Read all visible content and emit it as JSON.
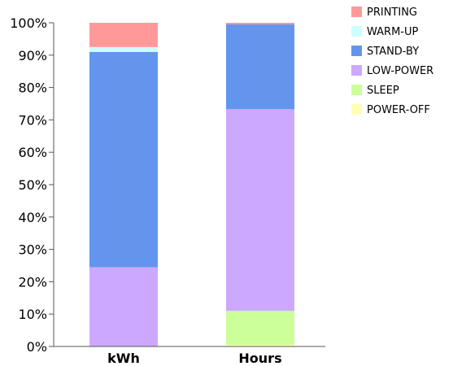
{
  "chart_data": {
    "type": "bar",
    "stacked": true,
    "categories": [
      "kWh",
      "Hours"
    ],
    "series": [
      {
        "name": "POWER-OFF",
        "color": "#ffffb3",
        "values": [
          0,
          0.5
        ]
      },
      {
        "name": "SLEEP",
        "color": "#ccff99",
        "values": [
          0,
          10.5
        ]
      },
      {
        "name": "LOW-POWER",
        "color": "#cca9ff",
        "values": [
          24.5,
          62.3
        ]
      },
      {
        "name": "STAND-BY",
        "color": "#6495ed",
        "values": [
          66.5,
          26.2
        ]
      },
      {
        "name": "WARM-UP",
        "color": "#ccffff",
        "values": [
          1.5,
          0
        ]
      },
      {
        "name": "PRINTING",
        "color": "#ff9999",
        "values": [
          7.5,
          0.5
        ]
      }
    ],
    "legend_order": [
      "PRINTING",
      "WARM-UP",
      "STAND-BY",
      "LOW-POWER",
      "SLEEP",
      "POWER-OFF"
    ],
    "yticks": [
      "0%",
      "10%",
      "20%",
      "30%",
      "40%",
      "50%",
      "60%",
      "70%",
      "80%",
      "90%",
      "100%"
    ],
    "ylim": [
      0,
      100
    ],
    "title": "",
    "xlabel": "",
    "ylabel": "",
    "grid": false,
    "legend_position": "top-right"
  }
}
